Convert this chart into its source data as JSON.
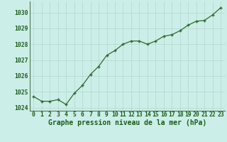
{
  "x": [
    0,
    1,
    2,
    3,
    4,
    5,
    6,
    7,
    8,
    9,
    10,
    11,
    12,
    13,
    14,
    15,
    16,
    17,
    18,
    19,
    20,
    21,
    22,
    23
  ],
  "y": [
    1024.7,
    1024.4,
    1024.4,
    1024.5,
    1024.2,
    1024.9,
    1025.4,
    1026.1,
    1026.6,
    1027.3,
    1027.6,
    1028.0,
    1028.2,
    1028.2,
    1028.0,
    1028.2,
    1028.5,
    1028.6,
    1028.85,
    1029.2,
    1029.45,
    1029.5,
    1029.85,
    1030.3
  ],
  "line_color": "#2d6a2d",
  "marker_color": "#2d6a2d",
  "bg_color": "#cceee8",
  "grid_color": "#b0d8cc",
  "xlabel": "Graphe pression niveau de la mer (hPa)",
  "xlabel_color": "#1a5c1a",
  "tick_color": "#1a5c1a",
  "ylim": [
    1023.8,
    1030.7
  ],
  "yticks": [
    1024,
    1025,
    1026,
    1027,
    1028,
    1029,
    1030
  ],
  "xticks": [
    0,
    1,
    2,
    3,
    4,
    5,
    6,
    7,
    8,
    9,
    10,
    11,
    12,
    13,
    14,
    15,
    16,
    17,
    18,
    19,
    20,
    21,
    22,
    23
  ],
  "tick_fontsize": 5.8,
  "xlabel_fontsize": 7.0
}
